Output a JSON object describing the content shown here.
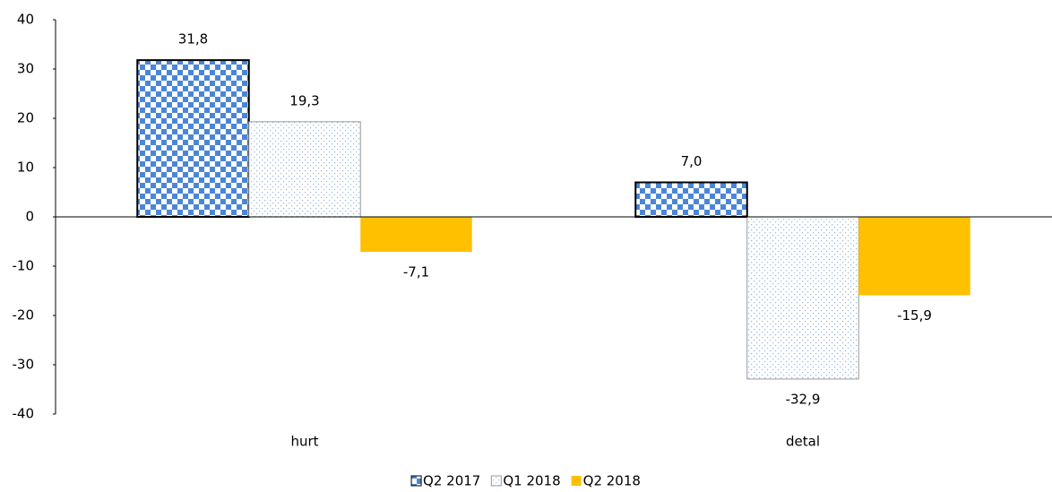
{
  "chart_data": {
    "type": "bar",
    "categories": [
      "hurt",
      "detal"
    ],
    "series": [
      {
        "name": "Q2 2017",
        "color": "#4a86d8",
        "fill_pattern": "checker",
        "values": [
          31.8,
          7.0
        ],
        "value_labels": [
          "31,8",
          "7,0"
        ]
      },
      {
        "name": "Q1 2018",
        "color": "#8fb4e3",
        "fill_pattern": "dots",
        "values": [
          19.3,
          -32.9
        ],
        "value_labels": [
          "19,3",
          "-32,9"
        ]
      },
      {
        "name": "Q2 2018",
        "color": "#ffc000",
        "fill_pattern": "solid",
        "values": [
          -7.1,
          -15.9
        ],
        "value_labels": [
          "-7,1",
          "-15,9"
        ]
      }
    ],
    "ylim": [
      -40,
      40
    ],
    "yticks": [
      -40,
      -30,
      -20,
      -10,
      0,
      10,
      20,
      30,
      40
    ],
    "grid": false,
    "legend": "bottom"
  }
}
